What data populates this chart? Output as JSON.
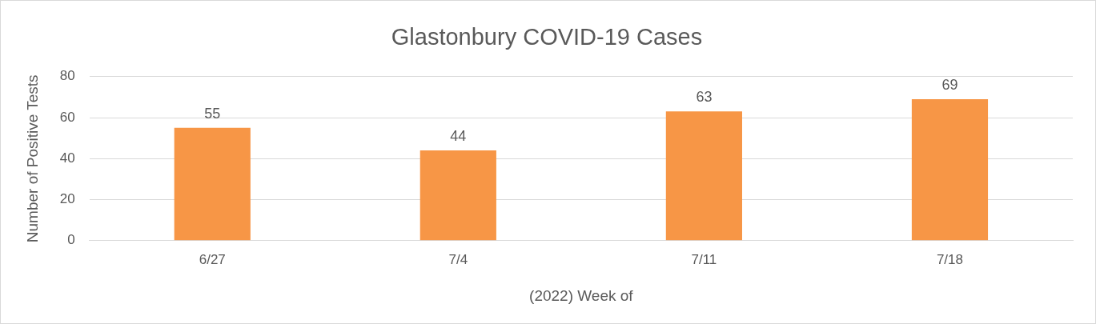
{
  "chart_data": {
    "type": "bar",
    "title": "Glastonbury COVID-19 Cases",
    "xlabel": "(2022) Week of",
    "ylabel": "Number of Positive Tests",
    "categories": [
      "6/27",
      "7/4",
      "7/11",
      "7/18"
    ],
    "values": [
      55,
      44,
      63,
      69
    ],
    "color": "#f79646",
    "ylim": [
      0,
      80
    ],
    "yticks": [
      0,
      20,
      40,
      60,
      80
    ],
    "grid": "y",
    "data_labels": true,
    "legend": false
  }
}
